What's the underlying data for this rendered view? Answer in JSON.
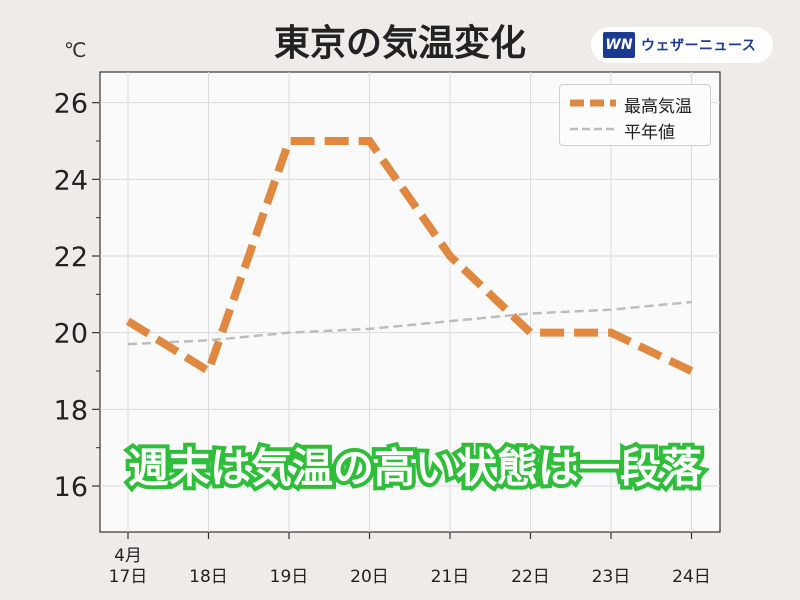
{
  "title": "東京の気温変化",
  "unit_label": "℃",
  "logo": {
    "mark": "WN",
    "text": "ウェザーニュース"
  },
  "overlay_caption": "週末は気温の高い状態は一段落",
  "colors": {
    "max_temp": "#e0883f",
    "normal": "#bdbdbd",
    "caption_outline": "#2fbe3a",
    "logo": "#1a3b8f"
  },
  "chart_data": {
    "type": "line",
    "title": "東京の気温変化",
    "xlabel": "",
    "ylabel": "℃",
    "categories": [
      "4月\n17日",
      "18日",
      "19日",
      "20日",
      "21日",
      "22日",
      "23日",
      "24日"
    ],
    "ylim": [
      14.8,
      26.8
    ],
    "yticks": [
      16,
      18,
      20,
      22,
      24,
      26
    ],
    "grid": true,
    "legend_position": "top-right",
    "series": [
      {
        "name": "最高気温",
        "values": [
          20.3,
          19,
          25,
          25,
          22,
          20,
          20,
          19
        ]
      },
      {
        "name": "平年値",
        "values": [
          19.7,
          19.8,
          20.0,
          20.1,
          20.3,
          20.5,
          20.6,
          20.8
        ]
      }
    ]
  }
}
